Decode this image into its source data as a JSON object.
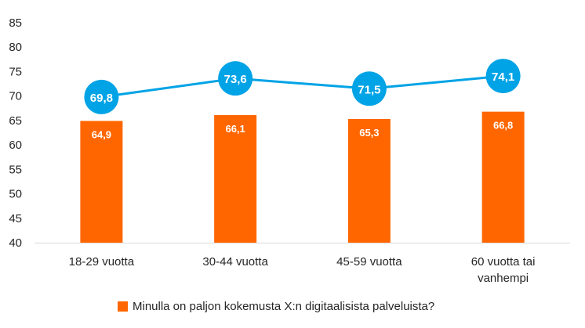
{
  "chart_data": {
    "type": "bar",
    "categories": [
      [
        "18-29 vuotta"
      ],
      [
        "30-44 vuotta"
      ],
      [
        "45-59 vuotta"
      ],
      [
        "60 vuotta tai",
        "vanhempi"
      ]
    ],
    "series": [
      {
        "type": "bar",
        "name": "Minulla on paljon kokemusta X:n digitaalisista palveluista?",
        "values": [
          64.9,
          66.1,
          65.3,
          66.8
        ],
        "labels": [
          "64,9",
          "66,1",
          "65,3",
          "66,8"
        ],
        "color": "#ff6600"
      },
      {
        "type": "line",
        "values": [
          69.8,
          73.6,
          71.5,
          74.1
        ],
        "labels": [
          "69,8",
          "73,6",
          "71,5",
          "74,1"
        ],
        "color": "#00a3e6"
      }
    ],
    "ylim": [
      40,
      85
    ],
    "yticks": [
      "40",
      "45",
      "50",
      "55",
      "60",
      "65",
      "70",
      "75",
      "80",
      "85"
    ],
    "grid": false,
    "legend": "bottom"
  }
}
